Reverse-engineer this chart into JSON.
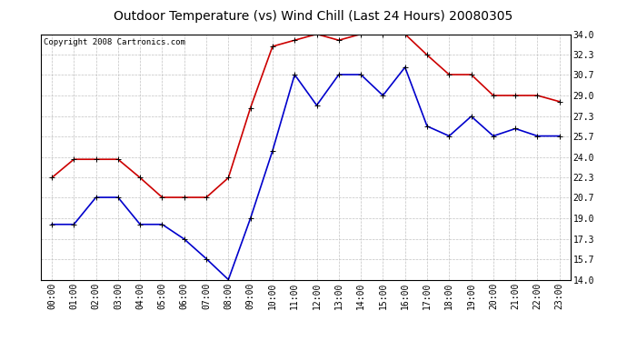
{
  "title": "Outdoor Temperature (vs) Wind Chill (Last 24 Hours) 20080305",
  "copyright": "Copyright 2008 Cartronics.com",
  "hours": [
    "00:00",
    "01:00",
    "02:00",
    "03:00",
    "04:00",
    "05:00",
    "06:00",
    "07:00",
    "08:00",
    "09:00",
    "10:00",
    "11:00",
    "12:00",
    "13:00",
    "14:00",
    "15:00",
    "16:00",
    "17:00",
    "18:00",
    "19:00",
    "20:00",
    "21:00",
    "22:00",
    "23:00"
  ],
  "temp": [
    22.3,
    23.8,
    23.8,
    23.8,
    22.3,
    20.7,
    20.7,
    20.7,
    22.3,
    28.0,
    33.0,
    33.5,
    34.0,
    33.5,
    34.0,
    34.0,
    34.0,
    32.3,
    30.7,
    30.7,
    29.0,
    29.0,
    29.0,
    28.5
  ],
  "windchill": [
    18.5,
    18.5,
    20.7,
    20.7,
    18.5,
    18.5,
    17.3,
    15.7,
    14.0,
    19.0,
    24.5,
    30.7,
    28.2,
    30.7,
    30.7,
    29.0,
    31.3,
    26.5,
    25.7,
    27.3,
    25.7,
    26.3,
    25.7,
    25.7
  ],
  "temp_color": "#cc0000",
  "windchill_color": "#0000cc",
  "ylim": [
    14.0,
    34.0
  ],
  "yticks": [
    14.0,
    15.7,
    17.3,
    19.0,
    20.7,
    22.3,
    24.0,
    25.7,
    27.3,
    29.0,
    30.7,
    32.3,
    34.0
  ],
  "bg_color": "#ffffff",
  "plot_bg_color": "#ffffff",
  "grid_color": "#bbbbbb",
  "marker": "+",
  "markersize": 5,
  "linewidth": 1.2,
  "title_fontsize": 10,
  "copyright_fontsize": 6.5,
  "tick_fontsize": 7,
  "ytick_fontsize": 7
}
